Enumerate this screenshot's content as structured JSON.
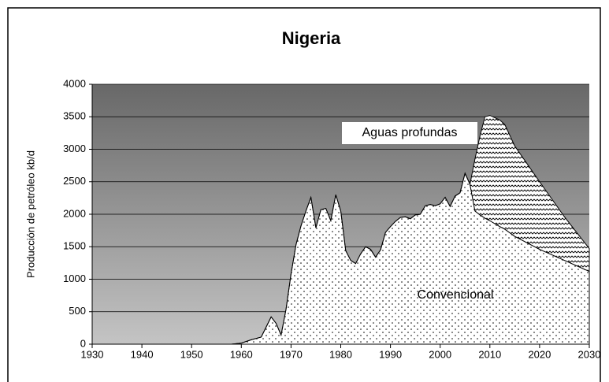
{
  "chart_data": {
    "type": "stacked_area",
    "title": "Nigeria",
    "y_label": "Producción de petróleo kb/d",
    "annotations": [
      "Aguas profundas",
      "Convencional"
    ],
    "x": [
      1930,
      1955,
      1958,
      1960,
      1962,
      1964,
      1966,
      1967,
      1968,
      1969,
      1970,
      1971,
      1972,
      1973,
      1974,
      1975,
      1976,
      1977,
      1978,
      1979,
      1980,
      1981,
      1982,
      1983,
      1984,
      1985,
      1986,
      1987,
      1988,
      1989,
      1990,
      1991,
      1992,
      1993,
      1994,
      1995,
      1996,
      1997,
      1998,
      1999,
      2000,
      2001,
      2002,
      2003,
      2004,
      2005,
      2006,
      2007,
      2008,
      2009,
      2010,
      2012,
      2013,
      2015,
      2020,
      2025,
      2030
    ],
    "series": [
      {
        "name": "Convencional",
        "color": "#ffffff",
        "values": [
          0,
          0,
          0,
          17,
          68,
          110,
          420,
          320,
          140,
          540,
          1080,
          1530,
          1820,
          2050,
          2260,
          1790,
          2070,
          2090,
          1900,
          2300,
          2050,
          1440,
          1290,
          1240,
          1390,
          1500,
          1460,
          1340,
          1450,
          1720,
          1810,
          1890,
          1950,
          1960,
          1930,
          1990,
          2000,
          2130,
          2150,
          2130,
          2160,
          2260,
          2120,
          2280,
          2330,
          2630,
          2460,
          2050,
          1990,
          1940,
          1900,
          1810,
          1770,
          1660,
          1460,
          1290,
          1120
        ]
      },
      {
        "name": "Aguas profundas",
        "color": "#ffffff",
        "values": [
          0,
          0,
          0,
          0,
          0,
          0,
          0,
          0,
          0,
          0,
          0,
          0,
          0,
          0,
          0,
          0,
          0,
          0,
          0,
          0,
          0,
          0,
          0,
          0,
          0,
          0,
          0,
          0,
          0,
          0,
          0,
          0,
          0,
          0,
          0,
          0,
          0,
          0,
          0,
          0,
          0,
          0,
          0,
          0,
          0,
          0,
          0,
          800,
          1210,
          1560,
          1620,
          1640,
          1610,
          1390,
          1040,
          670,
          350
        ]
      }
    ],
    "xlim": [
      1930,
      2030
    ],
    "xticks": [
      1930,
      1940,
      1950,
      1960,
      1970,
      1980,
      1990,
      2000,
      2010,
      2020,
      2030
    ],
    "ylim": [
      0,
      4000
    ],
    "yticks": [
      0,
      500,
      1000,
      1500,
      2000,
      2500,
      3000,
      3500,
      4000
    ],
    "grid": true
  }
}
